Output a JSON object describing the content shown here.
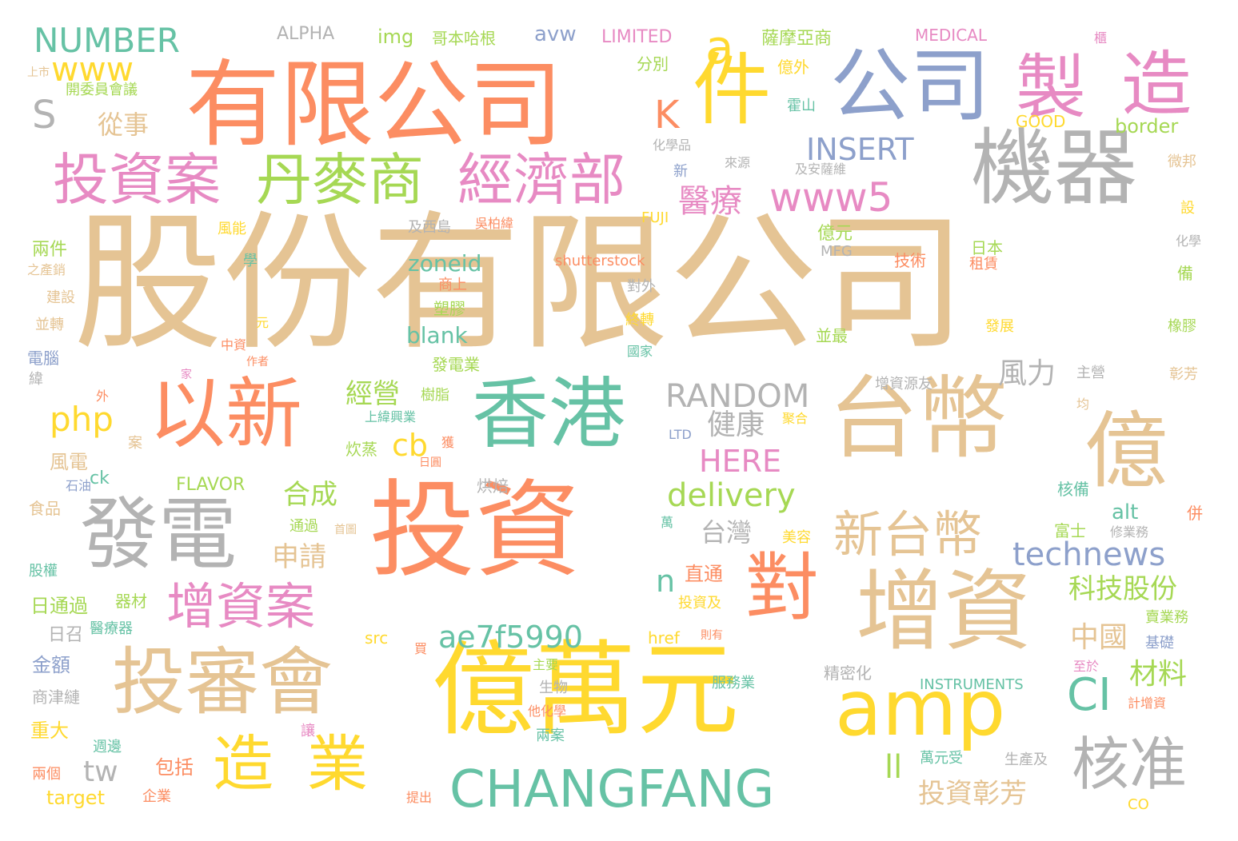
{
  "colors": {
    "tan": "#e5c494",
    "orange": "#fc8d62",
    "blue": "#8da0cb",
    "pink": "#e78ac3",
    "green": "#a6d854",
    "yellow": "#ffd92f",
    "teal": "#66c2a5",
    "gray": "#b3b3b3"
  },
  "words": [
    {
      "text": "股份有限公司",
      "color": "tan"
    },
    {
      "text": "有限公司",
      "color": "orange"
    },
    {
      "text": "投資",
      "color": "orange"
    },
    {
      "text": "億萬元",
      "color": "yellow"
    },
    {
      "text": "台幣",
      "color": "tan"
    },
    {
      "text": "億",
      "color": "tan"
    },
    {
      "text": "增資",
      "color": "tan"
    },
    {
      "text": "機器",
      "color": "gray"
    },
    {
      "text": "公司",
      "color": "blue"
    },
    {
      "text": "製",
      "color": "pink"
    },
    {
      "text": "造",
      "color": "pink"
    },
    {
      "text": "件",
      "color": "yellow"
    },
    {
      "text": "香港",
      "color": "teal"
    },
    {
      "text": "以新",
      "color": "orange"
    },
    {
      "text": "發電",
      "color": "gray"
    },
    {
      "text": "投審會",
      "color": "tan"
    },
    {
      "text": "amp",
      "color": "yellow"
    },
    {
      "text": "對",
      "color": "orange"
    },
    {
      "text": "造",
      "color": "yellow"
    },
    {
      "text": "業",
      "color": "yellow"
    },
    {
      "text": "核准",
      "color": "gray"
    },
    {
      "text": "CHANGFANG",
      "color": "teal"
    },
    {
      "text": "投資案",
      "color": "pink"
    },
    {
      "text": "丹麥商",
      "color": "green"
    },
    {
      "text": "經濟部",
      "color": "pink"
    },
    {
      "text": "新台幣",
      "color": "tan"
    },
    {
      "text": "增資案",
      "color": "pink"
    },
    {
      "text": "a",
      "color": "yellow"
    },
    {
      "text": "NUMBER",
      "color": "teal"
    },
    {
      "text": "www",
      "color": "yellow"
    },
    {
      "text": "S",
      "color": "gray"
    },
    {
      "text": "K",
      "color": "orange"
    },
    {
      "text": "www5",
      "color": "pink"
    },
    {
      "text": "INSERT",
      "color": "blue"
    },
    {
      "text": "醫療",
      "color": "pink"
    },
    {
      "text": "RANDOM",
      "color": "gray"
    },
    {
      "text": "php",
      "color": "yellow"
    },
    {
      "text": "cb",
      "color": "yellow"
    },
    {
      "text": "經營",
      "color": "green"
    },
    {
      "text": "健康",
      "color": "gray"
    },
    {
      "text": "HERE",
      "color": "pink"
    },
    {
      "text": "delivery",
      "color": "green"
    },
    {
      "text": "technews",
      "color": "blue"
    },
    {
      "text": "ae7f5990",
      "color": "teal"
    },
    {
      "text": "CI",
      "color": "teal"
    },
    {
      "text": "風力",
      "color": "gray"
    },
    {
      "text": "台灣",
      "color": "gray"
    },
    {
      "text": "科技股份",
      "color": "green"
    },
    {
      "text": "中國",
      "color": "tan"
    },
    {
      "text": "材料",
      "color": "green"
    },
    {
      "text": "投資彰芳",
      "color": "tan"
    },
    {
      "text": "合成",
      "color": "green"
    },
    {
      "text": "申請",
      "color": "tan"
    },
    {
      "text": "從事",
      "color": "tan"
    },
    {
      "text": "zoneid",
      "color": "teal"
    },
    {
      "text": "blank",
      "color": "teal"
    },
    {
      "text": "n",
      "color": "teal"
    },
    {
      "text": "tw",
      "color": "gray"
    },
    {
      "text": "ll",
      "color": "green"
    },
    {
      "text": "ALPHA",
      "color": "gray"
    },
    {
      "text": "img",
      "color": "green"
    },
    {
      "text": "哥本哈根",
      "color": "green"
    },
    {
      "text": "avw",
      "color": "blue"
    },
    {
      "text": "LIMITED",
      "color": "pink"
    },
    {
      "text": "薩摩亞商",
      "color": "green"
    },
    {
      "text": "MEDICAL",
      "color": "pink"
    },
    {
      "text": "櫃",
      "color": "pink"
    },
    {
      "text": "上市",
      "color": "tan"
    },
    {
      "text": "開委員會議",
      "color": "green"
    },
    {
      "text": "分別",
      "color": "green"
    },
    {
      "text": "億外",
      "color": "yellow"
    },
    {
      "text": "霍山",
      "color": "teal"
    },
    {
      "text": "GOOD",
      "color": "yellow"
    },
    {
      "text": "border",
      "color": "green"
    },
    {
      "text": "化學品",
      "color": "gray"
    },
    {
      "text": "新",
      "color": "blue"
    },
    {
      "text": "來源",
      "color": "gray"
    },
    {
      "text": "及安薩維",
      "color": "gray"
    },
    {
      "text": "微邦",
      "color": "tan"
    },
    {
      "text": "億元",
      "color": "green"
    },
    {
      "text": "設",
      "color": "yellow"
    },
    {
      "text": "及西島",
      "color": "gray"
    },
    {
      "text": "吳柏緯",
      "color": "orange"
    },
    {
      "text": "FUJI",
      "color": "yellow"
    },
    {
      "text": "化學",
      "color": "gray"
    },
    {
      "text": "兩件",
      "color": "green"
    },
    {
      "text": "風能",
      "color": "yellow"
    },
    {
      "text": "學",
      "color": "teal"
    },
    {
      "text": "shutterstock",
      "color": "orange"
    },
    {
      "text": "MFG",
      "color": "gray"
    },
    {
      "text": "技術",
      "color": "orange"
    },
    {
      "text": "日本",
      "color": "green"
    },
    {
      "text": "租賃",
      "color": "orange"
    },
    {
      "text": "備",
      "color": "green"
    },
    {
      "text": "之產銷",
      "color": "tan"
    },
    {
      "text": "商上",
      "color": "orange"
    },
    {
      "text": "對外",
      "color": "gray"
    },
    {
      "text": "建設",
      "color": "tan"
    },
    {
      "text": "塑膠",
      "color": "green"
    },
    {
      "text": "元",
      "color": "yellow"
    },
    {
      "text": "終轉",
      "color": "yellow"
    },
    {
      "text": "並轉",
      "color": "tan"
    },
    {
      "text": "發展",
      "color": "yellow"
    },
    {
      "text": "橡膠",
      "color": "green"
    },
    {
      "text": "中資",
      "color": "orange"
    },
    {
      "text": "並最",
      "color": "green"
    },
    {
      "text": "國家",
      "color": "teal"
    },
    {
      "text": "電腦",
      "color": "blue"
    },
    {
      "text": "作者",
      "color": "orange"
    },
    {
      "text": "發電業",
      "color": "green"
    },
    {
      "text": "家",
      "color": "pink"
    },
    {
      "text": "增資源友",
      "color": "gray"
    },
    {
      "text": "主營",
      "color": "gray"
    },
    {
      "text": "緯",
      "color": "gray"
    },
    {
      "text": "彰芳",
      "color": "tan"
    },
    {
      "text": "外",
      "color": "orange"
    },
    {
      "text": "樹脂",
      "color": "green"
    },
    {
      "text": "均",
      "color": "tan"
    },
    {
      "text": "上緯興業",
      "color": "teal"
    },
    {
      "text": "聚合",
      "color": "yellow"
    },
    {
      "text": "案",
      "color": "tan"
    },
    {
      "text": "炊蒸",
      "color": "green"
    },
    {
      "text": "獲",
      "color": "orange"
    },
    {
      "text": "LTD",
      "color": "blue"
    },
    {
      "text": "日圓",
      "color": "orange"
    },
    {
      "text": "風電",
      "color": "tan"
    },
    {
      "text": "ck",
      "color": "teal"
    },
    {
      "text": "石油",
      "color": "blue"
    },
    {
      "text": "FLAVOR",
      "color": "green"
    },
    {
      "text": "烘焙",
      "color": "gray"
    },
    {
      "text": "核備",
      "color": "teal"
    },
    {
      "text": "alt",
      "color": "teal"
    },
    {
      "text": "食品",
      "color": "tan"
    },
    {
      "text": "通過",
      "color": "green"
    },
    {
      "text": "首圖",
      "color": "tan"
    },
    {
      "text": "萬",
      "color": "teal"
    },
    {
      "text": "美容",
      "color": "yellow"
    },
    {
      "text": "富士",
      "color": "green"
    },
    {
      "text": "修業務",
      "color": "gray"
    },
    {
      "text": "併",
      "color": "orange"
    },
    {
      "text": "股權",
      "color": "teal"
    },
    {
      "text": "直通",
      "color": "orange"
    },
    {
      "text": "日通過",
      "color": "green"
    },
    {
      "text": "器材",
      "color": "green"
    },
    {
      "text": "投資及",
      "color": "yellow"
    },
    {
      "text": "賣業務",
      "color": "green"
    },
    {
      "text": "日召",
      "color": "gray"
    },
    {
      "text": "醫療器",
      "color": "teal"
    },
    {
      "text": "src",
      "color": "yellow"
    },
    {
      "text": "href",
      "color": "yellow"
    },
    {
      "text": "則有",
      "color": "orange"
    },
    {
      "text": "基礎",
      "color": "blue"
    },
    {
      "text": "金額",
      "color": "blue"
    },
    {
      "text": "買",
      "color": "orange"
    },
    {
      "text": "主要",
      "color": "green"
    },
    {
      "text": "精密化",
      "color": "gray"
    },
    {
      "text": "至於",
      "color": "pink"
    },
    {
      "text": "生物",
      "color": "gray"
    },
    {
      "text": "服務業",
      "color": "teal"
    },
    {
      "text": "商津縺",
      "color": "gray"
    },
    {
      "text": "INSTRUMENTS",
      "color": "teal"
    },
    {
      "text": "他化學",
      "color": "orange"
    },
    {
      "text": "計增資",
      "color": "orange"
    },
    {
      "text": "重大",
      "color": "yellow"
    },
    {
      "text": "讓",
      "color": "pink"
    },
    {
      "text": "週邊",
      "color": "teal"
    },
    {
      "text": "兩案",
      "color": "teal"
    },
    {
      "text": "包括",
      "color": "orange"
    },
    {
      "text": "萬元受",
      "color": "teal"
    },
    {
      "text": "生產及",
      "color": "gray"
    },
    {
      "text": "兩個",
      "color": "orange"
    },
    {
      "text": "target",
      "color": "yellow"
    },
    {
      "text": "企業",
      "color": "orange"
    },
    {
      "text": "提出",
      "color": "orange"
    },
    {
      "text": "CO",
      "color": "yellow"
    }
  ]
}
